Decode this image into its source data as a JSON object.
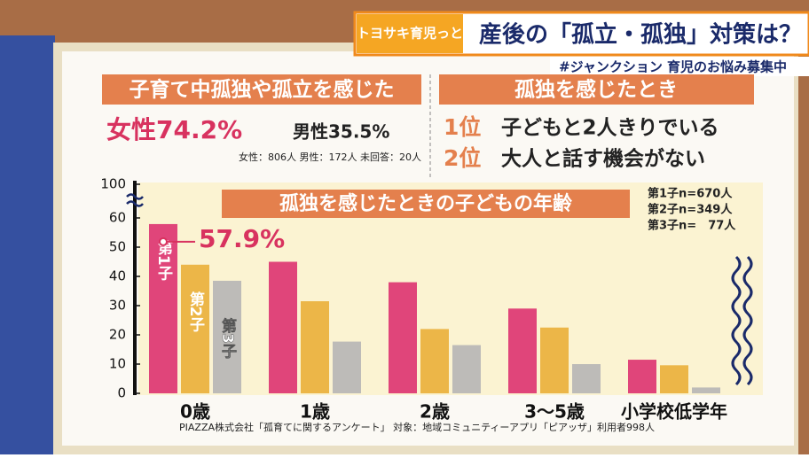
{
  "header": {
    "logo": "トヨサキ育児っと",
    "title": "産後の「孤立・孤独」対策は？",
    "hashtag": "#ジャンクション 育児のお悩み募集中"
  },
  "left_box": {
    "heading": "子育て中孤独や孤立を感じた",
    "female": "女性74.2%",
    "male": "男性35.5%",
    "counts": "女性：806人 男性：172人 未回答：20人"
  },
  "right_box": {
    "heading": "孤独を感じたとき",
    "items": [
      {
        "rank": "1位",
        "text": "子どもと2人きりでいる"
      },
      {
        "rank": "2位",
        "text": "大人と話す機会がない"
      }
    ]
  },
  "chart_data": {
    "type": "bar",
    "title": "孤独を感じたときの子どもの年齢",
    "categories": [
      "0歳",
      "1歳",
      "2歳",
      "3～5歳",
      "小学校低学年"
    ],
    "series": [
      {
        "name": "第1子",
        "color": "#e0457a",
        "values": [
          57.9,
          45,
          38,
          29,
          11.5
        ],
        "value_labels": [
          "57.9%",
          null,
          null,
          null,
          null
        ]
      },
      {
        "name": "第2子",
        "color": "#ecb648",
        "values": [
          44,
          31.5,
          22,
          22.5,
          9.6
        ]
      },
      {
        "name": "第3子",
        "color": "#bdbbb8",
        "values": [
          38.5,
          17.7,
          16.5,
          10,
          2
        ]
      }
    ],
    "ylim": [
      0,
      100
    ],
    "yticks": [
      0,
      10,
      20,
      30,
      40,
      50,
      60,
      100
    ],
    "axis_break": true,
    "notes": [
      "第1子n=670人",
      "第2子n=349人",
      "第3子n=　77人"
    ],
    "source": "PIAZZA株式会社「孤育てに関するアンケート」 対象：地域コミュニティーアプリ「ピアッザ」利用者998人"
  }
}
